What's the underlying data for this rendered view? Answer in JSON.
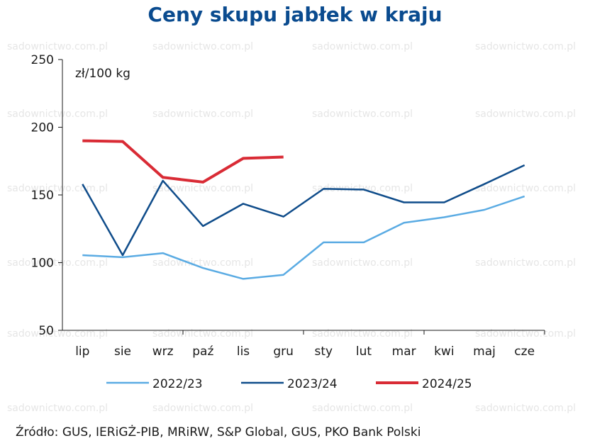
{
  "title": "Ceny skupu jabłek w kraju",
  "unit_label": "zł/100 kg",
  "source": "Źródło: GUS, IERiGŻ-PIB, MRiRW, S&P Global, GUS, PKO Bank Polski",
  "watermark": "sadownictwo.com.pl",
  "chart_data": {
    "type": "line",
    "title": "Ceny skupu jabłek w kraju",
    "xlabel": "",
    "ylabel": "zł/100 kg",
    "categories": [
      "lip",
      "sie",
      "wrz",
      "paź",
      "lis",
      "gru",
      "sty",
      "lut",
      "mar",
      "kwi",
      "maj",
      "cze"
    ],
    "ylim": [
      50,
      250
    ],
    "yticks": [
      50,
      100,
      150,
      200,
      250
    ],
    "grid": false,
    "legend": "bottom",
    "series": [
      {
        "name": "2022/23",
        "color": "#5aabe3",
        "values": [
          105.5,
          104,
          107,
          96,
          88,
          91,
          115,
          115,
          129.5,
          133.5,
          139,
          149
        ]
      },
      {
        "name": "2023/24",
        "color": "#0f4c8a",
        "values": [
          158,
          105.5,
          160.5,
          127,
          143.5,
          134,
          154.5,
          154,
          144.5,
          144.5,
          158,
          172
        ]
      },
      {
        "name": "2024/25",
        "color": "#d92b35",
        "values": [
          190,
          189.5,
          163,
          159.5,
          177,
          178,
          null,
          null,
          null,
          null,
          null,
          null
        ]
      }
    ]
  }
}
